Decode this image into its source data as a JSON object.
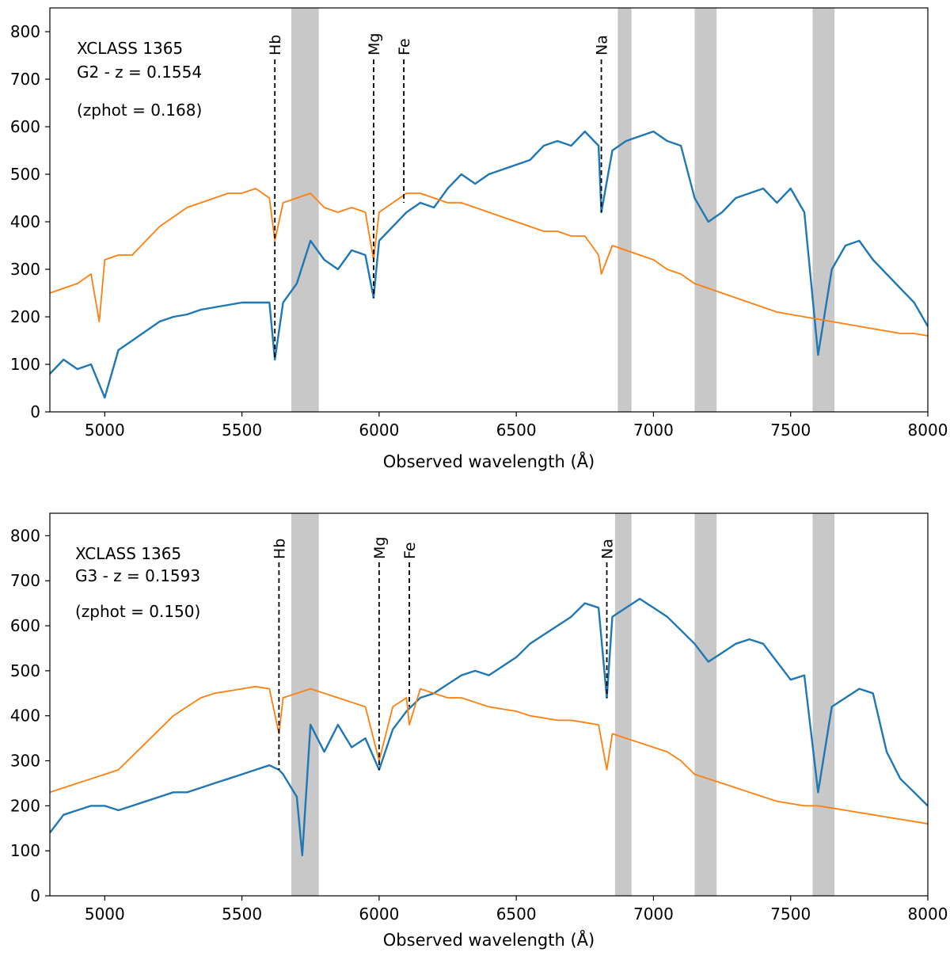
{
  "figure": {
    "colors": {
      "observed": "#1f77b4",
      "template": "#ff7f0e",
      "band": "#c8c8c8",
      "marker": "#000000"
    }
  },
  "chart_data": [
    {
      "type": "line",
      "title": "",
      "xlabel": "Observed wavelength (Å)",
      "ylabel": "",
      "xlim": [
        4800,
        8000
      ],
      "ylim": [
        0,
        850
      ],
      "xticks": [
        5000,
        5500,
        6000,
        6500,
        7000,
        7500,
        8000
      ],
      "yticks": [
        0,
        100,
        200,
        300,
        400,
        500,
        600,
        700,
        800
      ],
      "grid": false,
      "legend": "none",
      "annotation": {
        "line1": "XCLASS 1365",
        "line2": "G2 - z = 0.1554",
        "line3": "(zphot = 0.168)"
      },
      "shaded_bands": [
        [
          5680,
          5780
        ],
        [
          6870,
          6920
        ],
        [
          7150,
          7230
        ],
        [
          7580,
          7660
        ]
      ],
      "line_markers": [
        {
          "label": "Hb",
          "x": 5620,
          "y_end": 110
        },
        {
          "label": "Mg",
          "x": 5980,
          "y_end": 240
        },
        {
          "label": "Fe",
          "x": 6090,
          "y_end": 440
        },
        {
          "label": "Na",
          "x": 6810,
          "y_end": 420
        }
      ],
      "series": [
        {
          "name": "",
          "role": "observed",
          "x": [
            4800,
            4850,
            4900,
            4950,
            5000,
            5050,
            5100,
            5150,
            5200,
            5250,
            5300,
            5350,
            5400,
            5450,
            5500,
            5550,
            5600,
            5620,
            5650,
            5700,
            5750,
            5800,
            5850,
            5900,
            5950,
            5980,
            6000,
            6050,
            6100,
            6150,
            6200,
            6250,
            6300,
            6350,
            6400,
            6450,
            6500,
            6550,
            6600,
            6650,
            6700,
            6750,
            6800,
            6810,
            6850,
            6900,
            6950,
            7000,
            7050,
            7100,
            7150,
            7200,
            7250,
            7300,
            7350,
            7400,
            7450,
            7500,
            7550,
            7600,
            7650,
            7700,
            7750,
            7800,
            7850,
            7900,
            7950,
            8000
          ],
          "values": [
            80,
            110,
            90,
            100,
            30,
            130,
            150,
            170,
            190,
            200,
            205,
            215,
            220,
            225,
            230,
            230,
            230,
            110,
            230,
            270,
            360,
            320,
            300,
            340,
            330,
            240,
            360,
            390,
            420,
            440,
            430,
            470,
            500,
            480,
            500,
            510,
            520,
            530,
            560,
            570,
            560,
            590,
            560,
            420,
            550,
            570,
            580,
            590,
            570,
            560,
            450,
            400,
            420,
            450,
            460,
            470,
            440,
            470,
            420,
            120,
            300,
            350,
            360,
            320,
            290,
            260,
            230,
            180
          ]
        },
        {
          "name": "",
          "role": "template",
          "x": [
            4800,
            4850,
            4900,
            4950,
            4980,
            5000,
            5050,
            5100,
            5150,
            5200,
            5250,
            5300,
            5350,
            5400,
            5450,
            5500,
            5550,
            5600,
            5620,
            5650,
            5700,
            5750,
            5800,
            5850,
            5900,
            5950,
            5980,
            6000,
            6050,
            6100,
            6150,
            6200,
            6250,
            6300,
            6350,
            6400,
            6450,
            6500,
            6550,
            6600,
            6650,
            6700,
            6750,
            6800,
            6810,
            6850,
            6900,
            6950,
            7000,
            7050,
            7100,
            7150,
            7200,
            7250,
            7300,
            7350,
            7400,
            7450,
            7500,
            7550,
            7600,
            7650,
            7700,
            7750,
            7800,
            7850,
            7900,
            7950,
            8000
          ],
          "values": [
            250,
            260,
            270,
            290,
            190,
            320,
            330,
            330,
            360,
            390,
            410,
            430,
            440,
            450,
            460,
            460,
            470,
            450,
            360,
            440,
            450,
            460,
            430,
            420,
            430,
            420,
            320,
            420,
            440,
            460,
            460,
            450,
            440,
            440,
            430,
            420,
            410,
            400,
            390,
            380,
            380,
            370,
            370,
            330,
            290,
            350,
            340,
            330,
            320,
            300,
            290,
            270,
            260,
            250,
            240,
            230,
            220,
            210,
            205,
            200,
            195,
            190,
            185,
            180,
            175,
            170,
            165,
            165,
            160
          ]
        }
      ]
    },
    {
      "type": "line",
      "title": "",
      "xlabel": "Observed wavelength (Å)",
      "ylabel": "",
      "xlim": [
        4800,
        8000
      ],
      "ylim": [
        0,
        850
      ],
      "xticks": [
        5000,
        5500,
        6000,
        6500,
        7000,
        7500,
        8000
      ],
      "yticks": [
        0,
        100,
        200,
        300,
        400,
        500,
        600,
        700,
        800
      ],
      "grid": false,
      "legend": "none",
      "annotation": {
        "line1": "XCLASS 1365",
        "line2": "G3 - z = 0.1593",
        "line3": "(zphot = 0.150)"
      },
      "shaded_bands": [
        [
          5680,
          5780
        ],
        [
          6860,
          6920
        ],
        [
          7150,
          7230
        ],
        [
          7580,
          7660
        ]
      ],
      "line_markers": [
        {
          "label": "Hb",
          "x": 5635,
          "y_end": 280
        },
        {
          "label": "Mg",
          "x": 6000,
          "y_end": 280
        },
        {
          "label": "Fe",
          "x": 6110,
          "y_end": 420
        },
        {
          "label": "Na",
          "x": 6830,
          "y_end": 440
        }
      ],
      "series": [
        {
          "name": "",
          "role": "observed",
          "x": [
            4800,
            4850,
            4900,
            4950,
            5000,
            5050,
            5100,
            5150,
            5200,
            5250,
            5300,
            5350,
            5400,
            5450,
            5500,
            5550,
            5600,
            5635,
            5650,
            5700,
            5720,
            5750,
            5800,
            5850,
            5900,
            5950,
            6000,
            6050,
            6100,
            6150,
            6200,
            6250,
            6300,
            6350,
            6400,
            6450,
            6500,
            6550,
            6600,
            6650,
            6700,
            6750,
            6800,
            6830,
            6850,
            6900,
            6950,
            7000,
            7050,
            7100,
            7150,
            7200,
            7250,
            7300,
            7350,
            7400,
            7450,
            7500,
            7550,
            7600,
            7650,
            7700,
            7750,
            7800,
            7850,
            7900,
            7950,
            8000
          ],
          "values": [
            140,
            180,
            190,
            200,
            200,
            190,
            200,
            210,
            220,
            230,
            230,
            240,
            250,
            260,
            270,
            280,
            290,
            280,
            270,
            220,
            90,
            380,
            320,
            380,
            330,
            350,
            280,
            370,
            410,
            440,
            450,
            470,
            490,
            500,
            490,
            510,
            530,
            560,
            580,
            600,
            620,
            650,
            640,
            440,
            620,
            640,
            660,
            640,
            620,
            590,
            560,
            520,
            540,
            560,
            570,
            560,
            520,
            480,
            490,
            230,
            420,
            440,
            460,
            450,
            320,
            260,
            230,
            200
          ]
        },
        {
          "name": "",
          "role": "template",
          "x": [
            4800,
            4850,
            4900,
            4950,
            5000,
            5050,
            5100,
            5150,
            5200,
            5250,
            5300,
            5350,
            5400,
            5450,
            5500,
            5550,
            5600,
            5635,
            5650,
            5700,
            5750,
            5800,
            5850,
            5900,
            5950,
            6000,
            6050,
            6100,
            6110,
            6150,
            6200,
            6250,
            6300,
            6350,
            6400,
            6450,
            6500,
            6550,
            6600,
            6650,
            6700,
            6750,
            6800,
            6830,
            6850,
            6900,
            6950,
            7000,
            7050,
            7100,
            7150,
            7200,
            7250,
            7300,
            7350,
            7400,
            7450,
            7500,
            7550,
            7600,
            7650,
            7700,
            7750,
            7800,
            7850,
            7900,
            7950,
            8000
          ],
          "values": [
            230,
            240,
            250,
            260,
            270,
            280,
            310,
            340,
            370,
            400,
            420,
            440,
            450,
            455,
            460,
            465,
            460,
            360,
            440,
            450,
            460,
            450,
            440,
            430,
            420,
            300,
            420,
            440,
            380,
            460,
            450,
            440,
            440,
            430,
            420,
            415,
            410,
            400,
            395,
            390,
            390,
            385,
            380,
            280,
            360,
            350,
            340,
            330,
            320,
            300,
            270,
            260,
            250,
            240,
            230,
            220,
            210,
            205,
            200,
            200,
            195,
            190,
            185,
            180,
            175,
            170,
            165,
            160
          ]
        }
      ]
    }
  ]
}
